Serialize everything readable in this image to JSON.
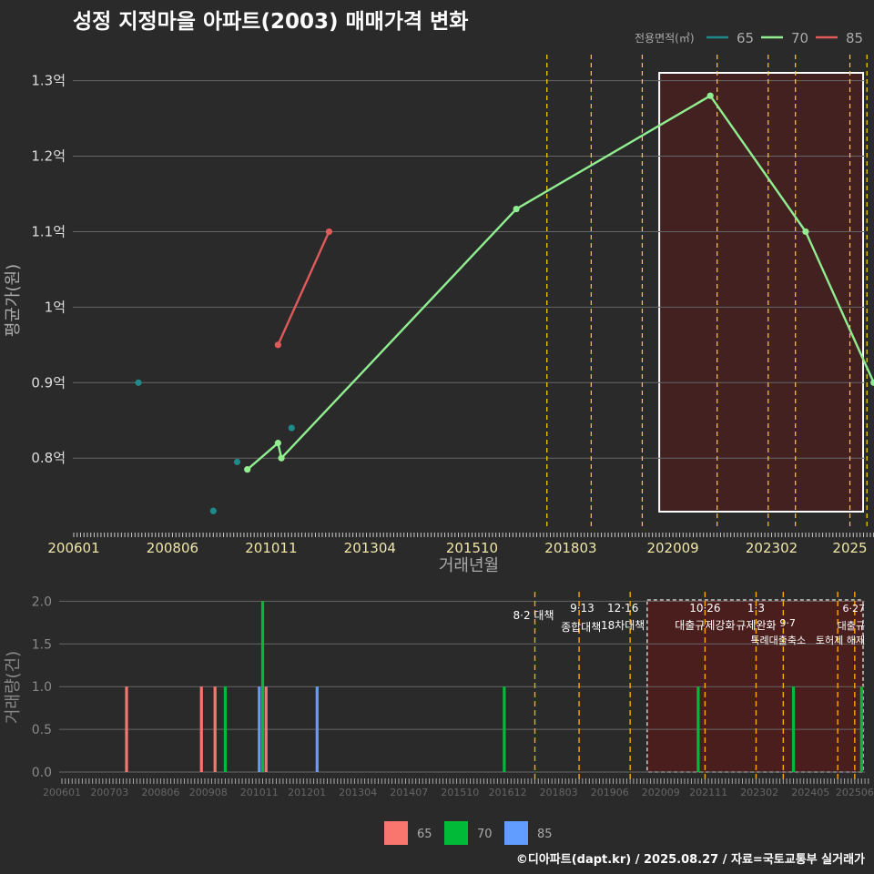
{
  "title": "성정 지정마을 아파트(2003) 매매가격 변화",
  "footer": "©디아파트(dapt.kr) / 2025.08.27 / 자료=국토교통부 실거래가",
  "colors": {
    "s65_line": "#1f8a8a",
    "s70_line": "#90ee90",
    "s85_line": "#e05a5a",
    "b65": "#f8766d",
    "b70": "#00ba38",
    "b85": "#619cff",
    "policy": "#ffd700",
    "policy_bottom": "#ffa500",
    "grid": "#666666",
    "highlight": "#5a1a1a"
  },
  "chart_data": [
    {
      "type": "line",
      "ylabel": "평균가(원)",
      "xlabel": "거래년월",
      "legend_title": "전용면적(㎡)",
      "legend_position": "top-right",
      "ylim": [
        0.705,
        1.32
      ],
      "yticks": [
        {
          "v": 0.8,
          "label": "0.8억"
        },
        {
          "v": 0.9,
          "label": "0.9억"
        },
        {
          "v": 1.0,
          "label": "1억"
        },
        {
          "v": 1.1,
          "label": "1.1억"
        },
        {
          "v": 1.2,
          "label": "1.2억"
        },
        {
          "v": 1.3,
          "label": "1.3억"
        }
      ],
      "xticks": [
        "200601",
        "200806",
        "201011",
        "201304",
        "201510",
        "201803",
        "202009",
        "202302",
        "2025"
      ],
      "series": [
        {
          "name": "65",
          "points": [
            {
              "x": "2007.08",
              "y": 0.9
            },
            {
              "x": "2009.06",
              "y": 0.73
            },
            {
              "x": "2010.01",
              "y": 0.795
            },
            {
              "x": "2011.05",
              "y": 0.84
            }
          ]
        },
        {
          "name": "70",
          "points": [
            {
              "x": "2010.04",
              "y": 0.785
            },
            {
              "x": "2011.01",
              "y": 0.82
            },
            {
              "x": "2011.02",
              "y": 0.8
            },
            {
              "x": "2016.11",
              "y": 1.13
            },
            {
              "x": "2021.08",
              "y": 1.28
            },
            {
              "x": "2023.12",
              "y": 1.1
            },
            {
              "x": "2025.08",
              "y": 0.9
            }
          ]
        },
        {
          "name": "85",
          "points": [
            {
              "x": "2011.01",
              "y": 0.95
            },
            {
              "x": "2012.04",
              "y": 1.1
            }
          ]
        }
      ],
      "highlight_range": [
        "2020.05",
        "2025.08"
      ],
      "policy_dates": [
        "2017.08",
        "2018.09",
        "2019.12",
        "2021.10",
        "2023.01",
        "2023.09",
        "2025.01",
        "2025.06"
      ]
    },
    {
      "type": "bar",
      "ylabel": "거래량(건)",
      "ylim": [
        0,
        2.1
      ],
      "yticks": [
        {
          "v": 0,
          "label": "0.0"
        },
        {
          "v": 0.5,
          "label": "0.5"
        },
        {
          "v": 1,
          "label": "1.0"
        },
        {
          "v": 1.5,
          "label": "1.5"
        },
        {
          "v": 2,
          "label": "2.0"
        }
      ],
      "xticks": [
        "200601",
        "200703",
        "200806",
        "200908",
        "201011",
        "201201",
        "201304",
        "201407",
        "201510",
        "201612",
        "201803",
        "201906",
        "202009",
        "202111",
        "202302",
        "202405",
        "202506"
      ],
      "bars": [
        {
          "x": "2007.08",
          "series": "65",
          "value": 1
        },
        {
          "x": "2009.06",
          "series": "65",
          "value": 1
        },
        {
          "x": "2009.10",
          "series": "65",
          "value": 1
        },
        {
          "x": "2010.01",
          "series": "70",
          "value": 1
        },
        {
          "x": "2010.12",
          "series": "70",
          "value": 2
        },
        {
          "x": "2010.11",
          "series": "85",
          "value": 1
        },
        {
          "x": "2011.01",
          "series": "65",
          "value": 1
        },
        {
          "x": "2012.04",
          "series": "85",
          "value": 1
        },
        {
          "x": "2016.11",
          "series": "70",
          "value": 1
        },
        {
          "x": "2021.08",
          "series": "70",
          "value": 1
        },
        {
          "x": "2023.12",
          "series": "70",
          "value": 1
        },
        {
          "x": "2025.08",
          "series": "70",
          "value": 1
        }
      ],
      "policies": [
        {
          "x": "2017.08",
          "date": "8·2",
          "name": "대책"
        },
        {
          "x": "2018.09",
          "date": "9·13",
          "name": "종합대책"
        },
        {
          "x": "2019.12",
          "date": "12·16",
          "name": "18차대책"
        },
        {
          "x": "2021.10",
          "date": "10·26",
          "name": "대출규제강화"
        },
        {
          "x": "2023.01",
          "date": "1·3",
          "name": "규제완화"
        },
        {
          "x": "2023.09",
          "date": "9·7",
          "name": "특례대출축소"
        },
        {
          "x": "2025.06",
          "date": "6·27",
          "name": "대출규"
        },
        {
          "x": "2025.01",
          "date": "",
          "name": "토허제 해제"
        }
      ],
      "legend": [
        "65",
        "70",
        "85"
      ]
    }
  ]
}
